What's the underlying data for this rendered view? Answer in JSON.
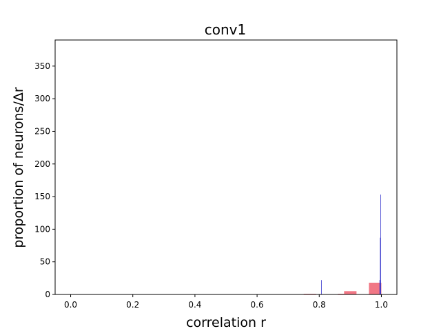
{
  "chart_data": {
    "type": "bar",
    "title": "conv1",
    "xlabel": "correlation r",
    "ylabel": "proportion of neurons/Δr",
    "xlim": [
      -0.05,
      1.05
    ],
    "ylim": [
      0,
      390
    ],
    "xticks": [
      "0.0",
      "0.2",
      "0.4",
      "0.6",
      "0.8",
      "1.0"
    ],
    "xtick_values": [
      0.0,
      0.2,
      0.4,
      0.6,
      0.8,
      1.0
    ],
    "yticks": [
      "0",
      "50",
      "100",
      "150",
      "200",
      "250",
      "300",
      "350"
    ],
    "ytick_values": [
      0,
      50,
      100,
      150,
      200,
      250,
      300,
      350
    ],
    "grid": false,
    "series": [
      {
        "color": "#ee5566",
        "bins": [
          {
            "x0": 0.75,
            "x1": 0.79,
            "value": 1
          },
          {
            "x0": 0.86,
            "x1": 0.88,
            "value": 1
          },
          {
            "x0": 0.88,
            "x1": 0.92,
            "value": 5
          },
          {
            "x0": 0.96,
            "x1": 1.0,
            "value": 18
          }
        ]
      },
      {
        "color": "#3333cc",
        "bins": [
          {
            "x0": 0.806,
            "x1": 0.808,
            "value": 22
          },
          {
            "x0": 0.994,
            "x1": 0.9955,
            "value": 22
          },
          {
            "x0": 0.9955,
            "x1": 0.997,
            "value": 87
          },
          {
            "x0": 0.997,
            "x1": 0.999,
            "value": 153
          }
        ]
      }
    ]
  }
}
